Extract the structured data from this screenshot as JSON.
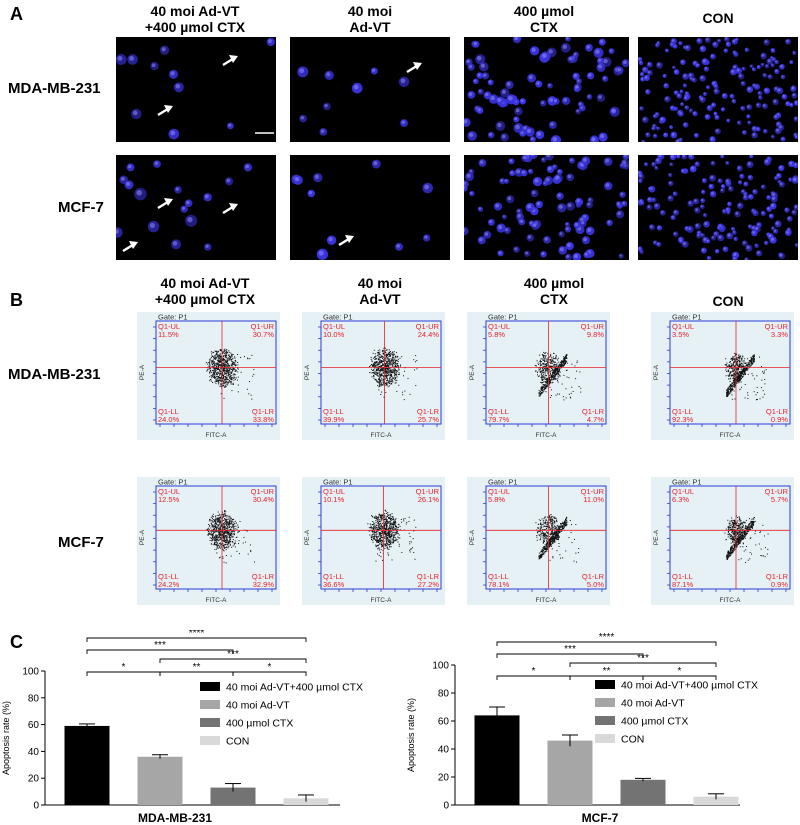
{
  "panels": {
    "a": "A",
    "b": "B",
    "c": "C"
  },
  "panel_a": {
    "columns": [
      {
        "line1": "40 moi Ad-VT",
        "line2": "+400 µmol CTX"
      },
      {
        "line1": "40 moi",
        "line2": "Ad-VT"
      },
      {
        "line1": "400 µmol",
        "line2": "CTX"
      },
      {
        "line1": "CON",
        "line2": ""
      }
    ],
    "rows": [
      "MDA-MB-231",
      "MCF-7"
    ]
  },
  "panel_b": {
    "columns": [
      {
        "line1": "40 moi Ad-VT",
        "line2": "+400 µmol CTX"
      },
      {
        "line1": "40 moi",
        "line2": "Ad-VT"
      },
      {
        "line1": "400 µmol",
        "line2": "CTX"
      },
      {
        "line1": "CON",
        "line2": ""
      }
    ],
    "rows": [
      "MDA-MB-231",
      "MCF-7"
    ],
    "gate_label": "Gate: P1",
    "x_axis_label": "FITC-A",
    "y_axis_label": "PE-A",
    "quadrant_names": {
      "ul": "Q1-UL",
      "ur": "Q1-UR",
      "ll": "Q1-LL",
      "lr": "Q1-LR"
    },
    "plots": [
      [
        {
          "ul": "11.5%",
          "ur": "30.7%",
          "ll": "24.0%",
          "lr": "33.8%"
        },
        {
          "ul": "10.0%",
          "ur": "24.4%",
          "ll": "39.9%",
          "lr": "25.7%"
        },
        {
          "ul": "5.8%",
          "ur": "9.8%",
          "ll": "79.7%",
          "lr": "4.7%"
        },
        {
          "ul": "3.5%",
          "ur": "3.3%",
          "ll": "92.3%",
          "lr": "0.9%"
        }
      ],
      [
        {
          "ul": "12.5%",
          "ur": "30.4%",
          "ll": "24.2%",
          "lr": "32.9%"
        },
        {
          "ul": "10.1%",
          "ur": "26.1%",
          "ll": "36.6%",
          "lr": "27.2%"
        },
        {
          "ul": "5.8%",
          "ur": "11.0%",
          "ll": "78.1%",
          "lr": "5.0%"
        },
        {
          "ul": "6.3%",
          "ur": "5.7%",
          "ll": "87.1%",
          "lr": "0.9%"
        }
      ]
    ]
  },
  "colors": {
    "combo": "#000000",
    "advt": "#a6a6a6",
    "ctx": "#737373",
    "con": "#d9d9d9",
    "flow_bg": "#e6f1f5",
    "quadrant": "#e8202a",
    "flow_axis": "#2b3bd6",
    "nuclei": "#3a34e0"
  },
  "chart_data": [
    {
      "type": "bar",
      "xlabel": "MDA-MB-231",
      "ylabel": "Apoptosis rate (%)",
      "ylim": [
        0,
        100
      ],
      "yticks": [
        "0",
        "20",
        "40",
        "60",
        "80",
        "100"
      ],
      "legend_position": "top-right",
      "series": [
        {
          "name": "40 moi Ad-VT+400 µmol CTX",
          "value": 59,
          "error": 1.5
        },
        {
          "name": "40 moi Ad-VT",
          "value": 36,
          "error": 1.5
        },
        {
          "name": "400 µmol CTX",
          "value": 13,
          "error": 3
        },
        {
          "name": "CON",
          "value": 5,
          "error": 2.5
        }
      ],
      "significance": [
        {
          "from": 0,
          "to": 3,
          "label": "****"
        },
        {
          "from": 0,
          "to": 2,
          "label": "***"
        },
        {
          "from": 1,
          "to": 3,
          "label": "***"
        },
        {
          "from": 0,
          "to": 1,
          "label": "*"
        },
        {
          "from": 1,
          "to": 2,
          "label": "**"
        },
        {
          "from": 2,
          "to": 3,
          "label": "*"
        }
      ]
    },
    {
      "type": "bar",
      "xlabel": "MCF-7",
      "ylabel": "Apoptosis rate (%)",
      "ylim": [
        0,
        100
      ],
      "yticks": [
        "0",
        "20",
        "40",
        "60",
        "80",
        "100"
      ],
      "legend_position": "top-right",
      "series": [
        {
          "name": "40 moi Ad-VT+400 µmol CTX",
          "value": 64,
          "error": 6
        },
        {
          "name": "40 moi Ad-VT",
          "value": 46,
          "error": 4
        },
        {
          "name": "400 µmol CTX",
          "value": 18,
          "error": 1
        },
        {
          "name": "CON",
          "value": 6,
          "error": 2
        }
      ],
      "significance": [
        {
          "from": 0,
          "to": 3,
          "label": "****"
        },
        {
          "from": 0,
          "to": 2,
          "label": "***"
        },
        {
          "from": 1,
          "to": 3,
          "label": "***"
        },
        {
          "from": 0,
          "to": 1,
          "label": "*"
        },
        {
          "from": 1,
          "to": 2,
          "label": "**"
        },
        {
          "from": 2,
          "to": 3,
          "label": "*"
        }
      ]
    }
  ]
}
